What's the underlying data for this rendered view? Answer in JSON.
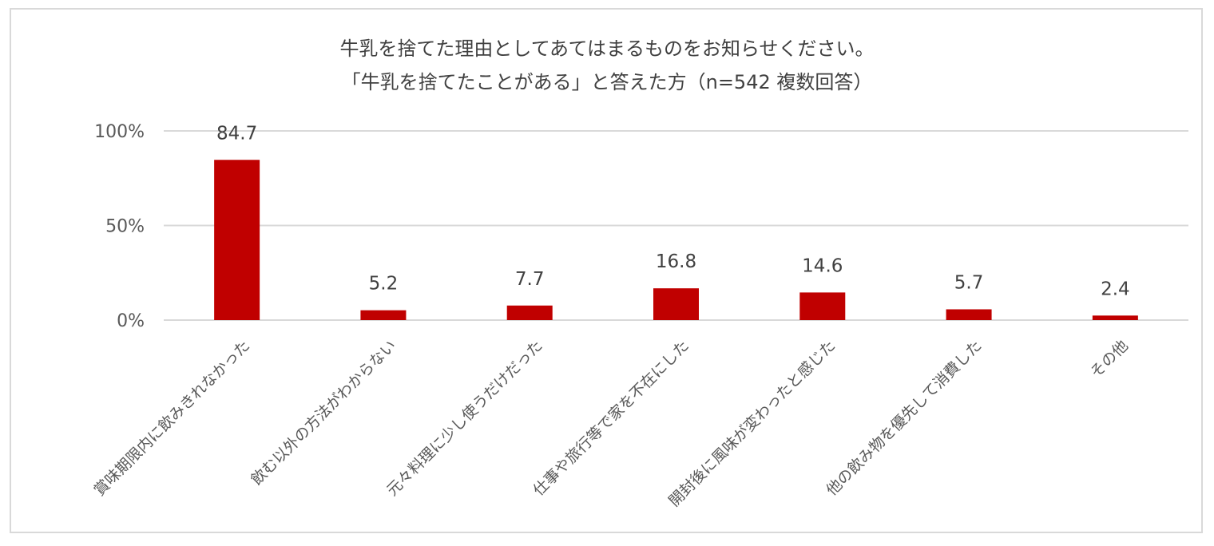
{
  "chart_data": {
    "type": "bar",
    "title": "牛乳を捨てた理由としてあてはまるものをお知らせください。",
    "subtitle": "「牛乳を捨てたことがある」と答えた方（n=542 複数回答）",
    "categories": [
      "賞味期限内に飲みきれなかった",
      "飲む以外の方法がわからない",
      "元々料理に少し使うだけだった",
      "仕事や旅行等で家を不在にした",
      "開封後に風味が変わったと感じた",
      "他の飲み物を優先して消費した",
      "その他"
    ],
    "values": [
      84.7,
      5.2,
      7.7,
      16.8,
      14.6,
      5.7,
      2.4
    ],
    "data_labels": [
      "84.7",
      "5.2",
      "7.7",
      "16.8",
      "14.6",
      "5.7",
      "2.4"
    ],
    "ylim": [
      0,
      100
    ],
    "yticks": [
      "0%",
      "50%",
      "100%"
    ],
    "ytick_values": [
      0,
      50,
      100
    ],
    "grid": true,
    "bar_color": "#c00000",
    "xlabel": "",
    "ylabel": ""
  }
}
